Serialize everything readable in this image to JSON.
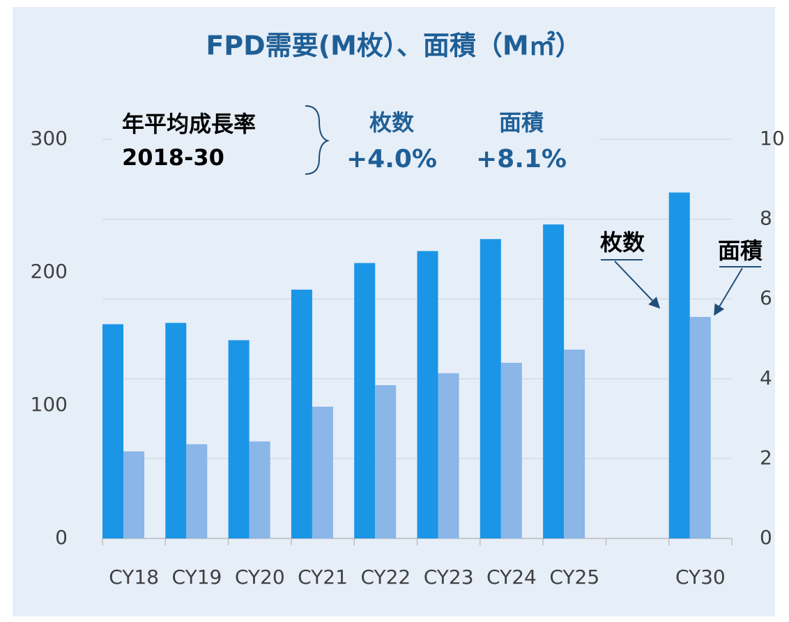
{
  "chart_data": {
    "type": "bar",
    "title": "FPD需要(M枚）、面積（M㎡）",
    "categories": [
      "CY18",
      "CY19",
      "CY20",
      "CY21",
      "CY22",
      "CY23",
      "CY24",
      "CY25",
      null,
      "CY30"
    ],
    "series": [
      {
        "name": "枚数",
        "color": "#1b95e6",
        "values": [
          161,
          162,
          149,
          187,
          207,
          216,
          225,
          236,
          null,
          260
        ]
      },
      {
        "name": "面積",
        "color": "#8ab6e8",
        "axis": "y2",
        "values": [
          2.18,
          2.36,
          2.43,
          3.3,
          3.84,
          4.14,
          4.4,
          4.73,
          null,
          5.55
        ]
      }
    ],
    "ylim": [
      0,
      300
    ],
    "yticks": [
      0,
      100,
      200,
      300
    ],
    "y2lim": [
      0,
      10
    ],
    "y2ticks": [
      0,
      2,
      4,
      6,
      8,
      10
    ],
    "grid": true,
    "annotations": {
      "label": "年平均成長率",
      "period": "2018-30",
      "items": [
        {
          "name": "枚数",
          "value": "+4.0%"
        },
        {
          "name": "面積",
          "value": "+8.1%"
        }
      ]
    }
  }
}
